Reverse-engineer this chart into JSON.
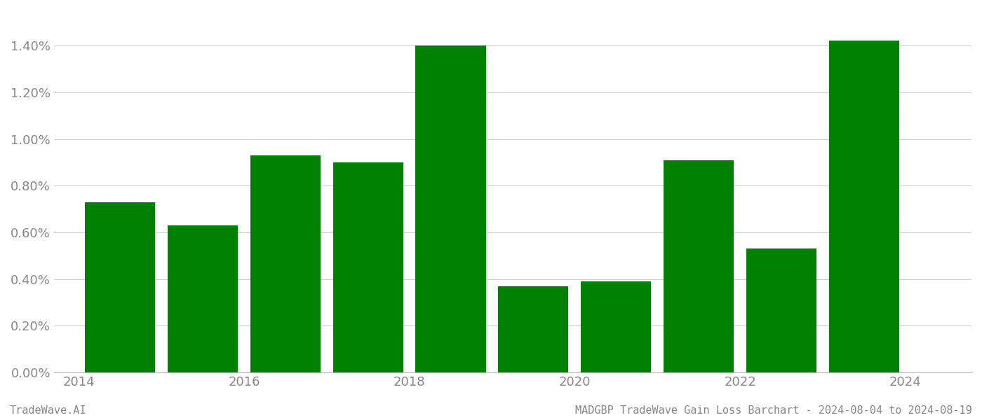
{
  "years": [
    2014,
    2015,
    2016,
    2017,
    2018,
    2019,
    2020,
    2021,
    2022,
    2023
  ],
  "values": [
    0.0073,
    0.0063,
    0.0093,
    0.009,
    0.014,
    0.0037,
    0.0039,
    0.0091,
    0.0053,
    0.0142
  ],
  "bar_color": "#008000",
  "background_color": "#ffffff",
  "grid_color": "#cccccc",
  "ylim_min": 0.0,
  "ylim_max": 0.0155,
  "footer_left": "TradeWave.AI",
  "footer_right": "MADGBP TradeWave Gain Loss Barchart - 2024-08-04 to 2024-08-19",
  "tick_label_color": "#888888",
  "footer_color": "#888888",
  "figwidth": 14.0,
  "figheight": 6.0,
  "dpi": 100
}
